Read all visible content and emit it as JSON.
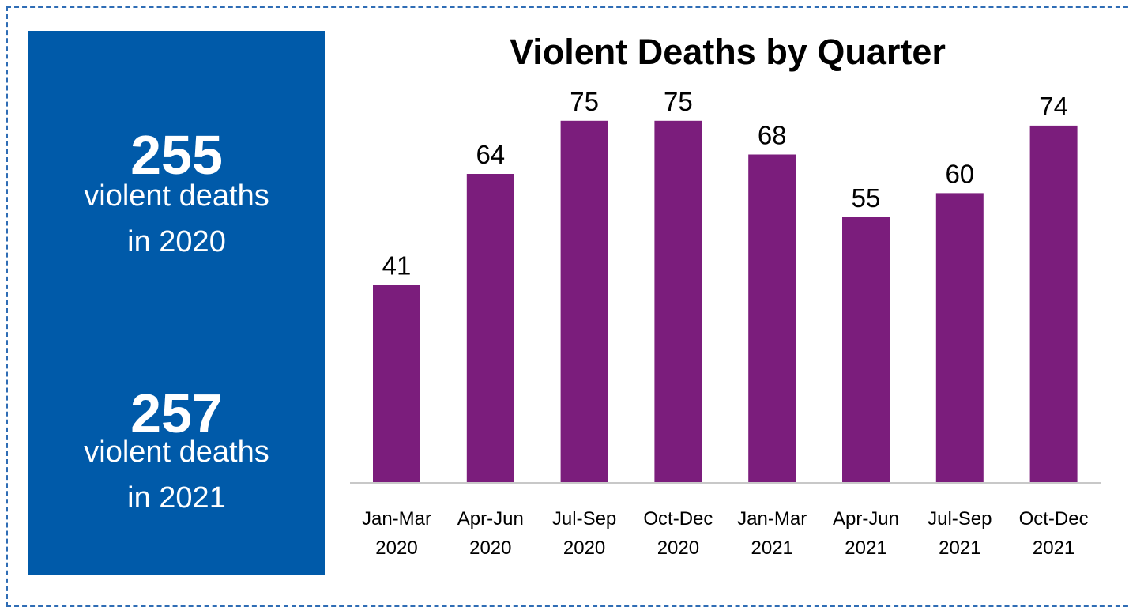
{
  "stats": [
    {
      "number": "255",
      "caption": "violent deaths\nin 2020"
    },
    {
      "number": "257",
      "caption": "violent deaths\nin 2021"
    }
  ],
  "colors": {
    "panel": "#005aa9",
    "bar": "#7b1d7c",
    "frame": "#2f6db5"
  },
  "chart_data": {
    "type": "bar",
    "title": "Violent Deaths by Quarter",
    "categories": [
      [
        "Jan-Mar",
        "2020"
      ],
      [
        "Apr-Jun",
        "2020"
      ],
      [
        "Jul-Sep",
        "2020"
      ],
      [
        "Oct-Dec",
        "2020"
      ],
      [
        "Jan-Mar",
        "2021"
      ],
      [
        "Apr-Jun",
        "2021"
      ],
      [
        "Jul-Sep",
        "2021"
      ],
      [
        "Oct-Dec",
        "2021"
      ]
    ],
    "values": [
      41,
      64,
      75,
      75,
      68,
      55,
      60,
      74
    ],
    "ylim": [
      0,
      82
    ],
    "grid": false,
    "data_labels": true,
    "legend": "none"
  }
}
